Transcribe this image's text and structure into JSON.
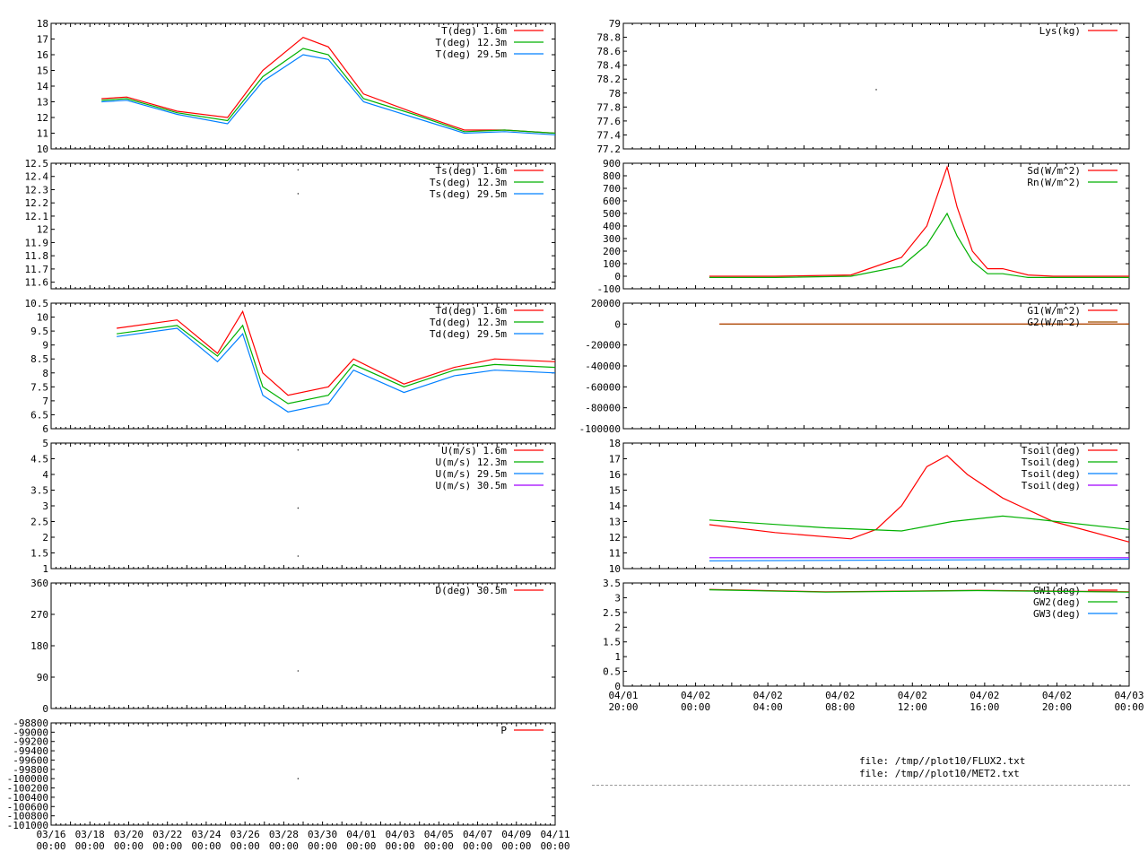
{
  "colors": {
    "s0": "#ff0000",
    "s1": "#00b000",
    "s2": "#0080ff",
    "s3": "#a000ff",
    "s_brown": "#a05000"
  },
  "footer": {
    "files": [
      "file: /tmp//plot10/FLUX2.txt",
      "file: /tmp//plot10/MET2.txt"
    ]
  },
  "chart_data": [
    {
      "id": "T",
      "type": "line",
      "ylim": [
        10,
        18
      ],
      "yticks": [
        "10",
        "11",
        "12",
        "13",
        "14",
        "15",
        "16",
        "17",
        "18"
      ],
      "xlabels": [],
      "series": [
        {
          "name": "T(deg)  1.6m",
          "color": "#ff0000",
          "x": [
            0.1,
            0.15,
            0.25,
            0.35,
            0.42,
            0.5,
            0.55,
            0.62,
            0.72,
            0.82,
            0.9,
            1.0
          ],
          "y": [
            13.2,
            13.3,
            12.4,
            12.0,
            15.0,
            17.1,
            16.5,
            13.5,
            12.3,
            11.2,
            11.2,
            11.0
          ]
        },
        {
          "name": "T(deg) 12.3m",
          "color": "#00b000",
          "x": [
            0.1,
            0.15,
            0.25,
            0.35,
            0.42,
            0.5,
            0.55,
            0.62,
            0.72,
            0.82,
            0.9,
            1.0
          ],
          "y": [
            13.1,
            13.2,
            12.3,
            11.8,
            14.6,
            16.4,
            16.0,
            13.2,
            12.2,
            11.1,
            11.2,
            11.0
          ]
        },
        {
          "name": "T(deg) 29.5m",
          "color": "#0080ff",
          "x": [
            0.1,
            0.15,
            0.25,
            0.35,
            0.42,
            0.5,
            0.55,
            0.62,
            0.72,
            0.82,
            0.9,
            1.0
          ],
          "y": [
            13.0,
            13.1,
            12.2,
            11.6,
            14.3,
            16.0,
            15.7,
            13.0,
            12.0,
            11.0,
            11.1,
            10.9
          ]
        }
      ]
    },
    {
      "id": "Lys",
      "type": "line",
      "ylim": [
        77.2,
        79
      ],
      "yticks": [
        "77.2",
        "77.4",
        "77.6",
        "77.8",
        "78",
        "78.2",
        "78.4",
        "78.6",
        "78.8",
        "79"
      ],
      "xlabels": [],
      "series": [
        {
          "name": "Lys(kg)",
          "color": "#ff0000",
          "x": [
            0.5
          ],
          "y": [
            78.05
          ]
        }
      ]
    },
    {
      "id": "Ts",
      "type": "line",
      "ylim": [
        11.55,
        12.5
      ],
      "yticks": [
        "11.6",
        "11.7",
        "11.8",
        "11.9",
        "12",
        "12.1",
        "12.2",
        "12.3",
        "12.4",
        "12.5"
      ],
      "xlabels": [],
      "series": [
        {
          "name": "Ts(deg)  1.6m",
          "color": "#ff0000",
          "x": [
            0.49
          ],
          "y": [
            12.45
          ]
        },
        {
          "name": "Ts(deg) 12.3m",
          "color": "#00b000",
          "x": [
            0.49
          ],
          "y": [
            12.27
          ]
        },
        {
          "name": "Ts(deg) 29.5m",
          "color": "#0080ff",
          "x": [
            0.49
          ],
          "y": [
            11.57
          ]
        }
      ]
    },
    {
      "id": "Rad",
      "type": "line",
      "ylim": [
        -100,
        900
      ],
      "yticks": [
        "-100",
        "0",
        "100",
        "200",
        "300",
        "400",
        "500",
        "600",
        "700",
        "800",
        "900"
      ],
      "xlabels": [],
      "series": [
        {
          "name": "Sd(W/m^2)",
          "color": "#ff0000",
          "x": [
            0.17,
            0.3,
            0.45,
            0.55,
            0.6,
            0.64,
            0.66,
            0.69,
            0.72,
            0.75,
            0.8,
            0.85,
            1.0
          ],
          "y": [
            0,
            0,
            10,
            150,
            400,
            870,
            550,
            200,
            60,
            60,
            10,
            0,
            0
          ]
        },
        {
          "name": "Rn(W/m^2)",
          "color": "#00b000",
          "x": [
            0.17,
            0.3,
            0.45,
            0.55,
            0.6,
            0.64,
            0.66,
            0.69,
            0.72,
            0.75,
            0.8,
            0.85,
            1.0
          ],
          "y": [
            -10,
            -10,
            0,
            80,
            250,
            500,
            320,
            120,
            20,
            20,
            -10,
            -10,
            -10
          ]
        }
      ]
    },
    {
      "id": "Td",
      "type": "line",
      "ylim": [
        6,
        10.5
      ],
      "yticks": [
        "6",
        "6.5",
        "7",
        "7.5",
        "8",
        "8.5",
        "9",
        "9.5",
        "10",
        "10.5"
      ],
      "xlabels": [],
      "series": [
        {
          "name": "Td(deg)  1.6m",
          "color": "#ff0000",
          "x": [
            0.13,
            0.25,
            0.33,
            0.38,
            0.42,
            0.47,
            0.55,
            0.6,
            0.7,
            0.8,
            0.88,
            1.0
          ],
          "y": [
            9.6,
            9.9,
            8.7,
            10.2,
            8.0,
            7.2,
            7.5,
            8.5,
            7.6,
            8.2,
            8.5,
            8.4
          ]
        },
        {
          "name": "Td(deg) 12.3m",
          "color": "#00b000",
          "x": [
            0.13,
            0.25,
            0.33,
            0.38,
            0.42,
            0.47,
            0.55,
            0.6,
            0.7,
            0.8,
            0.88,
            1.0
          ],
          "y": [
            9.4,
            9.7,
            8.6,
            9.7,
            7.5,
            6.9,
            7.2,
            8.3,
            7.5,
            8.1,
            8.3,
            8.2
          ]
        },
        {
          "name": "Td(deg) 29.5m",
          "color": "#0080ff",
          "x": [
            0.13,
            0.25,
            0.33,
            0.38,
            0.42,
            0.47,
            0.55,
            0.6,
            0.7,
            0.8,
            0.88,
            1.0
          ],
          "y": [
            9.3,
            9.6,
            8.4,
            9.4,
            7.2,
            6.6,
            6.9,
            8.1,
            7.3,
            7.9,
            8.1,
            8.0
          ]
        }
      ]
    },
    {
      "id": "G",
      "type": "line",
      "ylim": [
        -100000,
        20000
      ],
      "yticks": [
        "-100000",
        "-80000",
        "-60000",
        "-40000",
        "-20000",
        "0",
        "20000"
      ],
      "xlabels": [],
      "series": [
        {
          "name": "G1(W/m^2)",
          "color": "#ff0000",
          "x": [
            0.19,
            1.0
          ],
          "y": [
            0,
            0
          ]
        },
        {
          "name": "G2(W/m^2)",
          "color": "#a05000",
          "x": [
            0.19,
            1.0
          ],
          "y": [
            0,
            0
          ]
        }
      ]
    },
    {
      "id": "U",
      "type": "line",
      "ylim": [
        1,
        5
      ],
      "yticks": [
        "1",
        "1.5",
        "2",
        "2.5",
        "3",
        "3.5",
        "4",
        "4.5",
        "5"
      ],
      "xlabels": [],
      "series": [
        {
          "name": "U(m/s)  1.6m",
          "color": "#ff0000",
          "x": [
            0.49
          ],
          "y": [
            4.78
          ]
        },
        {
          "name": "U(m/s) 12.3m",
          "color": "#00b000",
          "x": [
            0.49
          ],
          "y": [
            2.93
          ]
        },
        {
          "name": "U(m/s) 29.5m",
          "color": "#0080ff",
          "x": [
            0.49
          ],
          "y": [
            1.4
          ]
        },
        {
          "name": "U(m/s) 30.5m",
          "color": "#a000ff",
          "x": [],
          "y": []
        }
      ]
    },
    {
      "id": "Tsoil",
      "type": "line",
      "ylim": [
        10,
        18
      ],
      "yticks": [
        "10",
        "11",
        "12",
        "13",
        "14",
        "15",
        "16",
        "17",
        "18"
      ],
      "xlabels": [],
      "series": [
        {
          "name": "Tsoil(deg)",
          "color": "#ff0000",
          "x": [
            0.17,
            0.3,
            0.45,
            0.5,
            0.55,
            0.6,
            0.64,
            0.68,
            0.75,
            0.85,
            1.0
          ],
          "y": [
            12.8,
            12.3,
            11.9,
            12.5,
            14.0,
            16.5,
            17.2,
            16.0,
            14.5,
            13.0,
            11.7
          ]
        },
        {
          "name": "Tsoil(deg)",
          "color": "#00b000",
          "x": [
            0.17,
            0.4,
            0.55,
            0.65,
            0.75,
            0.8,
            1.0
          ],
          "y": [
            13.1,
            12.6,
            12.4,
            13.0,
            13.35,
            13.2,
            12.5
          ]
        },
        {
          "name": "Tsoil(deg)",
          "color": "#0080ff",
          "x": [
            0.17,
            1.0
          ],
          "y": [
            10.5,
            10.6
          ]
        },
        {
          "name": "Tsoil(deg)",
          "color": "#a000ff",
          "x": [
            0.17,
            1.0
          ],
          "y": [
            10.7,
            10.7
          ]
        }
      ]
    },
    {
      "id": "D",
      "type": "line",
      "ylim": [
        0,
        360
      ],
      "yticks": [
        "0",
        "90",
        "180",
        "270",
        "360"
      ],
      "xlabels": [],
      "series": [
        {
          "name": "D(deg)  30.5m",
          "color": "#ff0000",
          "x": [
            0.49
          ],
          "y": [
            108
          ]
        }
      ]
    },
    {
      "id": "GW",
      "type": "line",
      "ylim": [
        0,
        3.5
      ],
      "yticks": [
        "0",
        "0.5",
        "1",
        "1.5",
        "2",
        "2.5",
        "3",
        "3.5"
      ],
      "xlabels": [
        "04/01\n20:00",
        "04/02\n00:00",
        "04/02\n04:00",
        "04/02\n08:00",
        "04/02\n12:00",
        "04/02\n16:00",
        "04/02\n20:00",
        "04/03\n00:00"
      ],
      "series": [
        {
          "name": "GW1(deg)",
          "color": "#ff0000",
          "x": [
            0.17,
            0.4,
            0.7,
            1.0
          ],
          "y": [
            3.28,
            3.2,
            3.25,
            3.2
          ]
        },
        {
          "name": "GW2(deg)",
          "color": "#00b000",
          "x": [
            0.17,
            0.4,
            0.7,
            1.0
          ],
          "y": [
            3.27,
            3.19,
            3.24,
            3.19
          ]
        },
        {
          "name": "GW3(deg)",
          "color": "#0080ff",
          "x": [],
          "y": []
        }
      ]
    },
    {
      "id": "P",
      "type": "line",
      "ylim": [
        -101000,
        -98800
      ],
      "yticks": [
        "-101000",
        "-100800",
        "-100600",
        "-100400",
        "-100200",
        "-100000",
        "-99800",
        "-99600",
        "-99400",
        "-99200",
        "-99000",
        "-98800"
      ],
      "xlabels": [
        "03/16\n00:00",
        "03/18\n00:00",
        "03/20\n00:00",
        "03/22\n00:00",
        "03/24\n00:00",
        "03/26\n00:00",
        "03/28\n00:00",
        "03/30\n00:00",
        "04/01\n00:00",
        "04/03\n00:00",
        "04/05\n00:00",
        "04/07\n00:00",
        "04/09\n00:00",
        "04/11\n00:00"
      ],
      "series": [
        {
          "name": "P",
          "color": "#ff0000",
          "x": [
            0.49
          ],
          "y": [
            -100000
          ]
        }
      ]
    }
  ]
}
